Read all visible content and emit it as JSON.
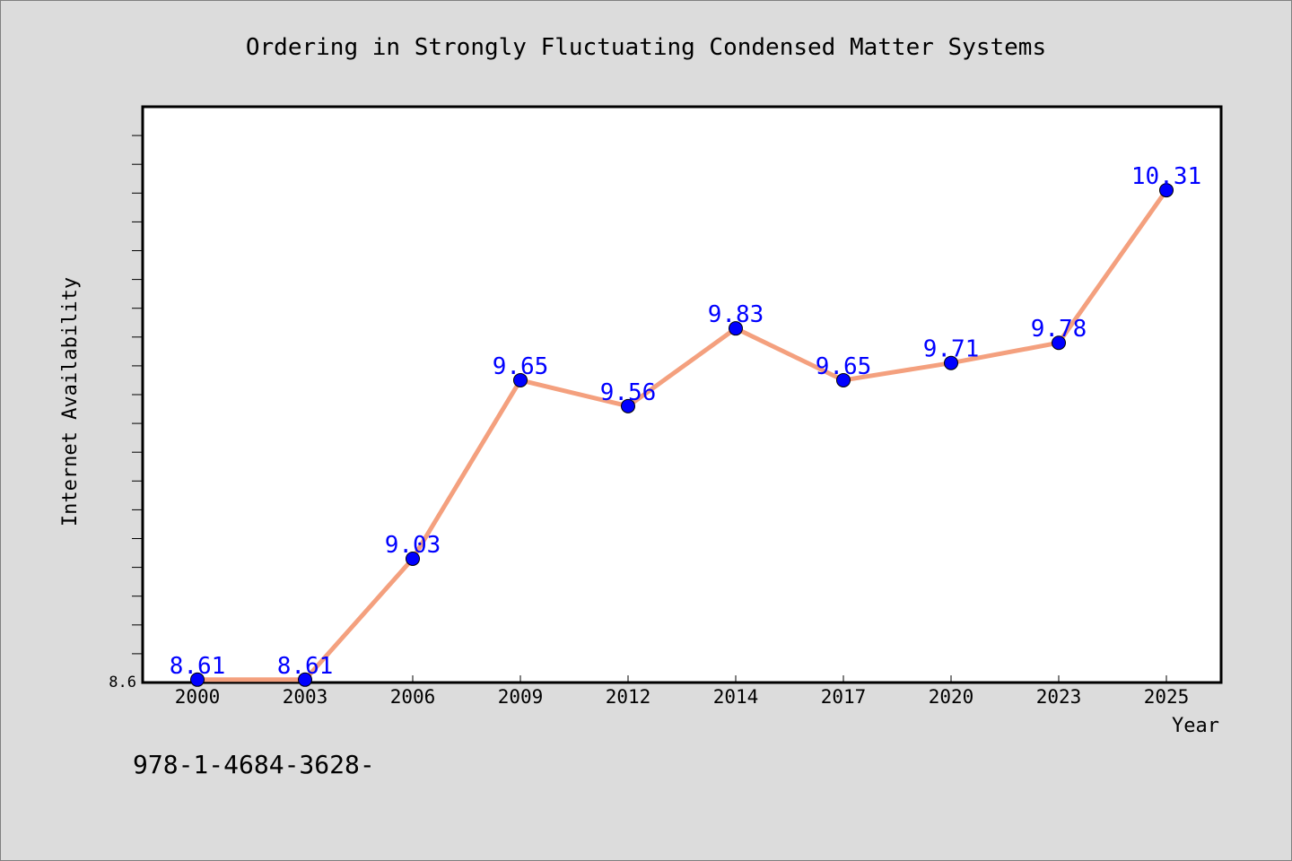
{
  "chart_data": {
    "type": "line",
    "title": "Ordering in Strongly Fluctuating Condensed Matter Systems",
    "xlabel": "Year",
    "ylabel": "Internet Availability",
    "categories": [
      "2000",
      "2003",
      "2006",
      "2009",
      "2012",
      "2014",
      "2017",
      "2020",
      "2023",
      "2025"
    ],
    "series": [
      {
        "values": [
          8.61,
          8.61,
          9.03,
          9.65,
          9.56,
          9.83,
          9.65,
          9.71,
          9.78,
          10.31
        ],
        "labels": [
          "8.61",
          "8.61",
          "9.03",
          "9.65",
          "9.56",
          "9.83",
          "9.65",
          "9.71",
          "9.78",
          "10.31"
        ],
        "line_color": "#f4a07e",
        "marker_color": "#0000ff"
      }
    ],
    "ylim": [
      8.6,
      10.6
    ],
    "ytick_label": "8.6",
    "grid": false,
    "legend": "none"
  },
  "footer": {
    "text": "978-1-4684-3628-"
  }
}
